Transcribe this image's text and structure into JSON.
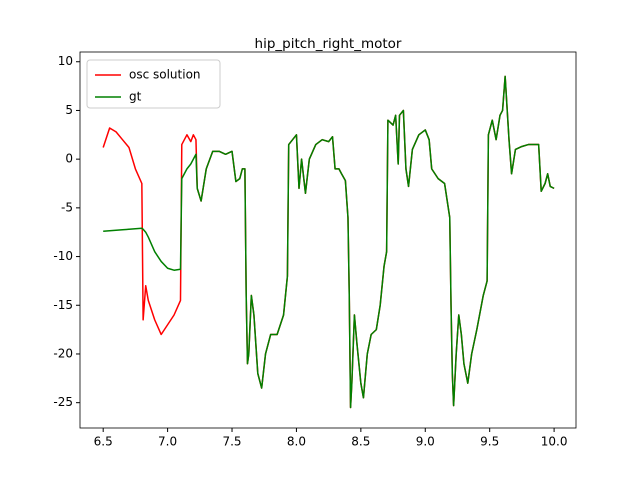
{
  "chart_data": {
    "type": "line",
    "title": "hip_pitch_right_motor",
    "x": [
      6.5,
      6.55,
      6.6,
      6.65,
      6.7,
      6.75,
      6.8,
      6.81,
      6.83,
      6.85,
      6.9,
      6.95,
      7.0,
      7.05,
      7.1,
      7.11,
      7.15,
      7.18,
      7.2,
      7.22,
      7.23,
      7.26,
      7.3,
      7.35,
      7.4,
      7.45,
      7.5,
      7.53,
      7.56,
      7.58,
      7.6,
      7.61,
      7.62,
      7.63,
      7.65,
      7.67,
      7.7,
      7.73,
      7.76,
      7.8,
      7.85,
      7.9,
      7.93,
      7.94,
      7.97,
      8.0,
      8.02,
      8.04,
      8.07,
      8.1,
      8.15,
      8.2,
      8.25,
      8.28,
      8.3,
      8.33,
      8.35,
      8.38,
      8.4,
      8.41,
      8.42,
      8.43,
      8.45,
      8.47,
      8.5,
      8.52,
      8.55,
      8.58,
      8.62,
      8.65,
      8.68,
      8.7,
      8.71,
      8.75,
      8.77,
      8.79,
      8.8,
      8.83,
      8.85,
      8.87,
      8.9,
      8.95,
      9.0,
      9.03,
      9.05,
      9.1,
      9.15,
      9.19,
      9.2,
      9.21,
      9.22,
      9.24,
      9.26,
      9.28,
      9.3,
      9.33,
      9.36,
      9.4,
      9.45,
      9.48,
      9.49,
      9.52,
      9.55,
      9.58,
      9.6,
      9.62,
      9.65,
      9.67,
      9.7,
      9.75,
      9.8,
      9.85,
      9.88,
      9.9,
      9.93,
      9.95,
      9.97,
      10.0
    ],
    "series": [
      {
        "name": "osc solution",
        "color": "#ff0000",
        "values": [
          1.2,
          3.2,
          2.8,
          2.0,
          1.2,
          -1.0,
          -2.5,
          -16.5,
          -13,
          -14.5,
          -16.5,
          -18,
          -17,
          -16,
          -14.5,
          1.5,
          2.5,
          1.8,
          2.5,
          2.0,
          -3,
          -4.3,
          -1,
          0.8,
          0.8,
          0.5,
          0.8,
          -2.3,
          -2,
          -1,
          -1,
          -14,
          -21,
          -20,
          -14,
          -16,
          -22,
          -23.5,
          -20,
          -18,
          -18,
          -16,
          -12,
          1.5,
          2,
          2.5,
          -3,
          0,
          -3.5,
          0,
          1.5,
          2,
          1.8,
          2.3,
          -1,
          -1,
          -1.5,
          -2.2,
          -6,
          -14,
          -25.5,
          -23,
          -16,
          -19,
          -23,
          -24.5,
          -20,
          -18,
          -17.5,
          -15,
          -11,
          -9.5,
          4,
          3.5,
          4.5,
          -0.5,
          4.5,
          5,
          -1,
          -2.8,
          1,
          2.5,
          3,
          2,
          -1,
          -2,
          -2.5,
          -6,
          -15,
          -22,
          -25.3,
          -20,
          -16,
          -18,
          -21,
          -23,
          -20,
          -17.5,
          -14,
          -12.5,
          2.5,
          4,
          2,
          4.5,
          5,
          8.5,
          2,
          -1.5,
          1,
          1.3,
          1.5,
          1.5,
          1.5,
          -3.3,
          -2.5,
          -1.5,
          -2.8,
          -3
        ]
      },
      {
        "name": "gt",
        "color": "#008000",
        "values": [
          -7.4,
          -7.35,
          -7.3,
          -7.25,
          -7.2,
          -7.15,
          -7.1,
          -7.2,
          -7.5,
          -8,
          -9.5,
          -10.5,
          -11.2,
          -11.4,
          -11.3,
          -2,
          -1,
          -0.5,
          0,
          0.5,
          -3,
          -4.3,
          -1,
          0.8,
          0.8,
          0.5,
          0.8,
          -2.3,
          -2,
          -1,
          -1,
          -14,
          -21,
          -20,
          -14,
          -16,
          -22,
          -23.5,
          -20,
          -18,
          -18,
          -16,
          -12,
          1.5,
          2,
          2.5,
          -3,
          0,
          -3.5,
          0,
          1.5,
          2,
          1.8,
          2.3,
          -1,
          -1,
          -1.5,
          -2.2,
          -6,
          -14,
          -25.5,
          -23,
          -16,
          -19,
          -23,
          -24.5,
          -20,
          -18,
          -17.5,
          -15,
          -11,
          -9.5,
          4,
          3.5,
          4.5,
          -0.5,
          4.5,
          5,
          -1,
          -2.8,
          1,
          2.5,
          3,
          2,
          -1,
          -2,
          -2.5,
          -6,
          -15,
          -22,
          -25.3,
          -20,
          -16,
          -18,
          -21,
          -23,
          -20,
          -17.5,
          -14,
          -12.5,
          2.5,
          4,
          2,
          4.5,
          5,
          8.5,
          2,
          -1.5,
          1,
          1.3,
          1.5,
          1.5,
          1.5,
          -3.3,
          -2.5,
          -1.5,
          -2.8,
          -3
        ]
      }
    ],
    "xlim": [
      6.32,
      10.17
    ],
    "ylim": [
      -27.6,
      11.0
    ],
    "xticks": [
      6.5,
      {
        "value": 7,
        "label": "7.0"
      },
      7.5,
      {
        "value": 8,
        "label": "8.0"
      },
      8.5,
      {
        "value": 9,
        "label": "9.0"
      },
      9.5,
      {
        "value": 10,
        "label": "10.0"
      }
    ],
    "yticks": [
      -25,
      -20,
      -15,
      -10,
      -5,
      0,
      5,
      10
    ],
    "legend": "upper left"
  }
}
